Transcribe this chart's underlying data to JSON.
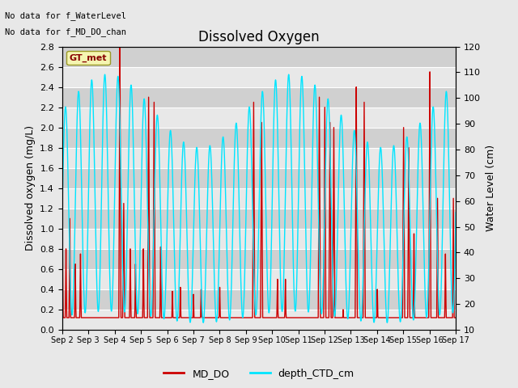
{
  "title": "Dissolved Oxygen",
  "ylabel_left": "Dissolved oxygen (mg/L)",
  "ylabel_right": "Water Level (cm)",
  "ylim_left": [
    0.0,
    2.8
  ],
  "ylim_right": [
    10,
    120
  ],
  "yticks_left": [
    0.0,
    0.2,
    0.4,
    0.6,
    0.8,
    1.0,
    1.2,
    1.4,
    1.6,
    1.8,
    2.0,
    2.2,
    2.4,
    2.6,
    2.8
  ],
  "yticks_right": [
    10,
    20,
    30,
    40,
    50,
    60,
    70,
    80,
    90,
    100,
    110,
    120
  ],
  "xtick_labels": [
    "Sep 2",
    "Sep 3",
    "Sep 4",
    "Sep 5",
    "Sep 6",
    "Sep 7",
    "Sep 8",
    "Sep 9",
    "Sep 10",
    "Sep 11",
    "Sep 12",
    "Sep 13",
    "Sep 14",
    "Sep 15",
    "Sep 16",
    "Sep 17"
  ],
  "annotations": [
    "No data for f_WaterLevel",
    "No data for f_MD_DO_chan"
  ],
  "legend_label": "GT_met",
  "line1_label": "MD_DO",
  "line2_label": "depth_CTD_cm",
  "line1_color": "#cc0000",
  "line2_color": "#00e5ff",
  "fig_bg_color": "#e8e8e8",
  "plot_bg_color": "#d8d8d8",
  "grid_color": "#ffffff",
  "title_fontsize": 12,
  "label_fontsize": 9,
  "tick_fontsize": 8
}
